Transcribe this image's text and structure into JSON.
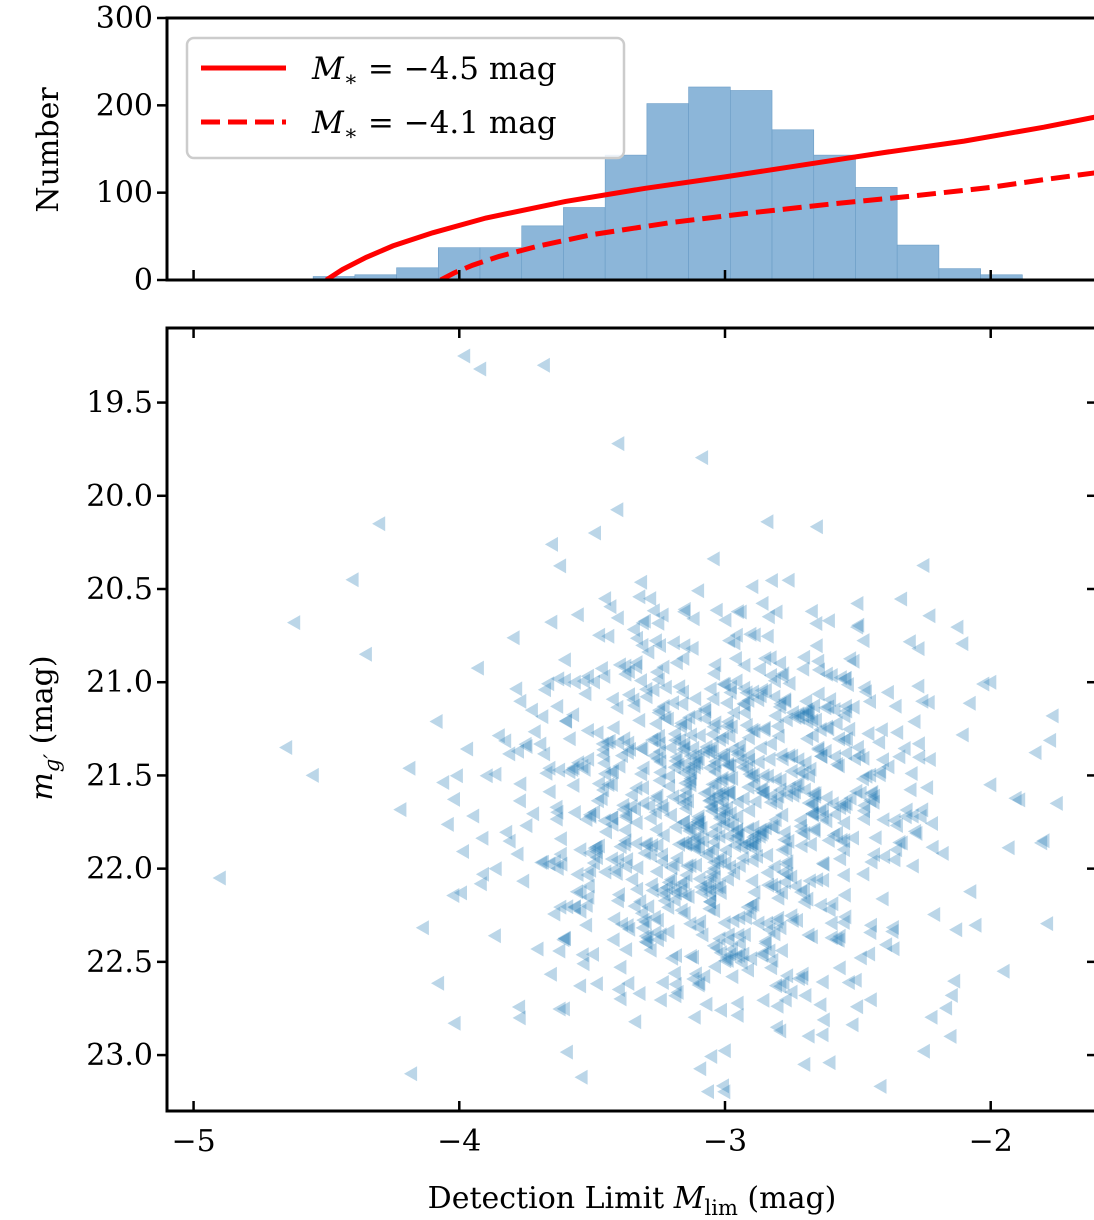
{
  "chart_data": [
    {
      "type": "bar",
      "panel": "top-histogram",
      "ylabel": "Number",
      "xlim": [
        -5.1,
        -1.6
      ],
      "ylim": [
        0,
        300
      ],
      "yticks": [
        0,
        100,
        200,
        300
      ],
      "bin_width": 0.157,
      "bins": [
        {
          "left": -4.55,
          "count": 4
        },
        {
          "left": -4.393,
          "count": 6
        },
        {
          "left": -4.236,
          "count": 14
        },
        {
          "left": -4.079,
          "count": 37
        },
        {
          "left": -3.922,
          "count": 37
        },
        {
          "left": -3.765,
          "count": 62
        },
        {
          "left": -3.608,
          "count": 83
        },
        {
          "left": -3.451,
          "count": 143
        },
        {
          "left": -3.294,
          "count": 202
        },
        {
          "left": -3.137,
          "count": 221
        },
        {
          "left": -2.98,
          "count": 217
        },
        {
          "left": -2.823,
          "count": 172
        },
        {
          "left": -2.666,
          "count": 143
        },
        {
          "left": -2.509,
          "count": 106
        },
        {
          "left": -2.352,
          "count": 40
        },
        {
          "left": -2.195,
          "count": 13
        },
        {
          "left": -2.038,
          "count": 6
        }
      ],
      "series": [
        {
          "name": "$M_* = -4.5$ mag",
          "label_text": "M",
          "label_sub": "∗",
          "label_rest": " = −4.5 mag",
          "style": "solid",
          "color": "#ff0000",
          "x": [
            -4.5,
            -4.44,
            -4.35,
            -4.25,
            -4.1,
            -3.9,
            -3.6,
            -3.3,
            -3.0,
            -2.7,
            -2.4,
            -2.1,
            -1.8,
            -1.6
          ],
          "y": [
            0,
            12,
            26,
            39,
            54,
            71,
            90,
            105,
            118,
            132,
            146,
            159,
            175,
            187
          ]
        },
        {
          "name": "$M_* = -4.1$ mag",
          "label_text": "M",
          "label_sub": "∗",
          "label_rest": " = −4.1 mag",
          "style": "dashed",
          "color": "#ff0000",
          "x": [
            -4.07,
            -4.02,
            -3.95,
            -3.85,
            -3.7,
            -3.5,
            -3.2,
            -2.9,
            -2.6,
            -2.3,
            -2.0,
            -1.8,
            -1.6
          ],
          "y": [
            0,
            8,
            17,
            27,
            39,
            52,
            66,
            77,
            87,
            96,
            106,
            115,
            123
          ]
        }
      ],
      "legend": {
        "placement": "top-left"
      },
      "colors": {
        "hist": "#8cb6d9",
        "line": "#ff0000"
      }
    },
    {
      "type": "scatter",
      "panel": "bottom-scatter",
      "xlabel": "Detection Limit",
      "xlabel_sym": "M",
      "xlabel_sub": "lim",
      "xlabel_unit": " (mag)",
      "ylabel_sym": "m",
      "ylabel_sub": "g′",
      "ylabel_unit": " (mag)",
      "xlim": [
        -5.1,
        -1.6
      ],
      "ylim": [
        23.3,
        19.1
      ],
      "xticks": [
        -5,
        -4,
        -3,
        -2
      ],
      "xtick_labels": [
        "−5",
        "−4",
        "−3",
        "−2"
      ],
      "yticks": [
        19.5,
        20.0,
        20.5,
        21.0,
        21.5,
        22.0,
        22.5,
        23.0
      ],
      "ytick_labels": [
        "19.5",
        "20.0",
        "20.5",
        "21.0",
        "21.5",
        "22.0",
        "22.5",
        "23.0"
      ],
      "marker": "left-triangle",
      "color": "#1f77b4",
      "alpha": 0.3,
      "n_points": 1000,
      "center": [
        -3.0,
        21.7
      ],
      "spread": [
        0.42,
        0.58
      ],
      "outliers": [
        [
          -4.9,
          22.05
        ],
        [
          -4.65,
          21.35
        ],
        [
          -4.62,
          20.68
        ],
        [
          -4.55,
          21.5
        ],
        [
          -4.4,
          20.45
        ],
        [
          -4.35,
          20.85
        ],
        [
          -4.3,
          20.15
        ],
        [
          -4.18,
          23.1
        ],
        [
          -3.98,
          19.25
        ],
        [
          -3.92,
          19.32
        ],
        [
          -3.68,
          19.3
        ],
        [
          -3.4,
          19.72
        ],
        [
          -2.7,
          23.05
        ],
        [
          -2.25,
          22.98
        ],
        [
          -2.15,
          22.9
        ],
        [
          -2.0,
          21.55
        ],
        [
          -1.8,
          21.85
        ],
        [
          -1.75,
          21.65
        ],
        [
          -1.95,
          22.55
        ],
        [
          -2.0,
          21.0
        ]
      ]
    }
  ]
}
